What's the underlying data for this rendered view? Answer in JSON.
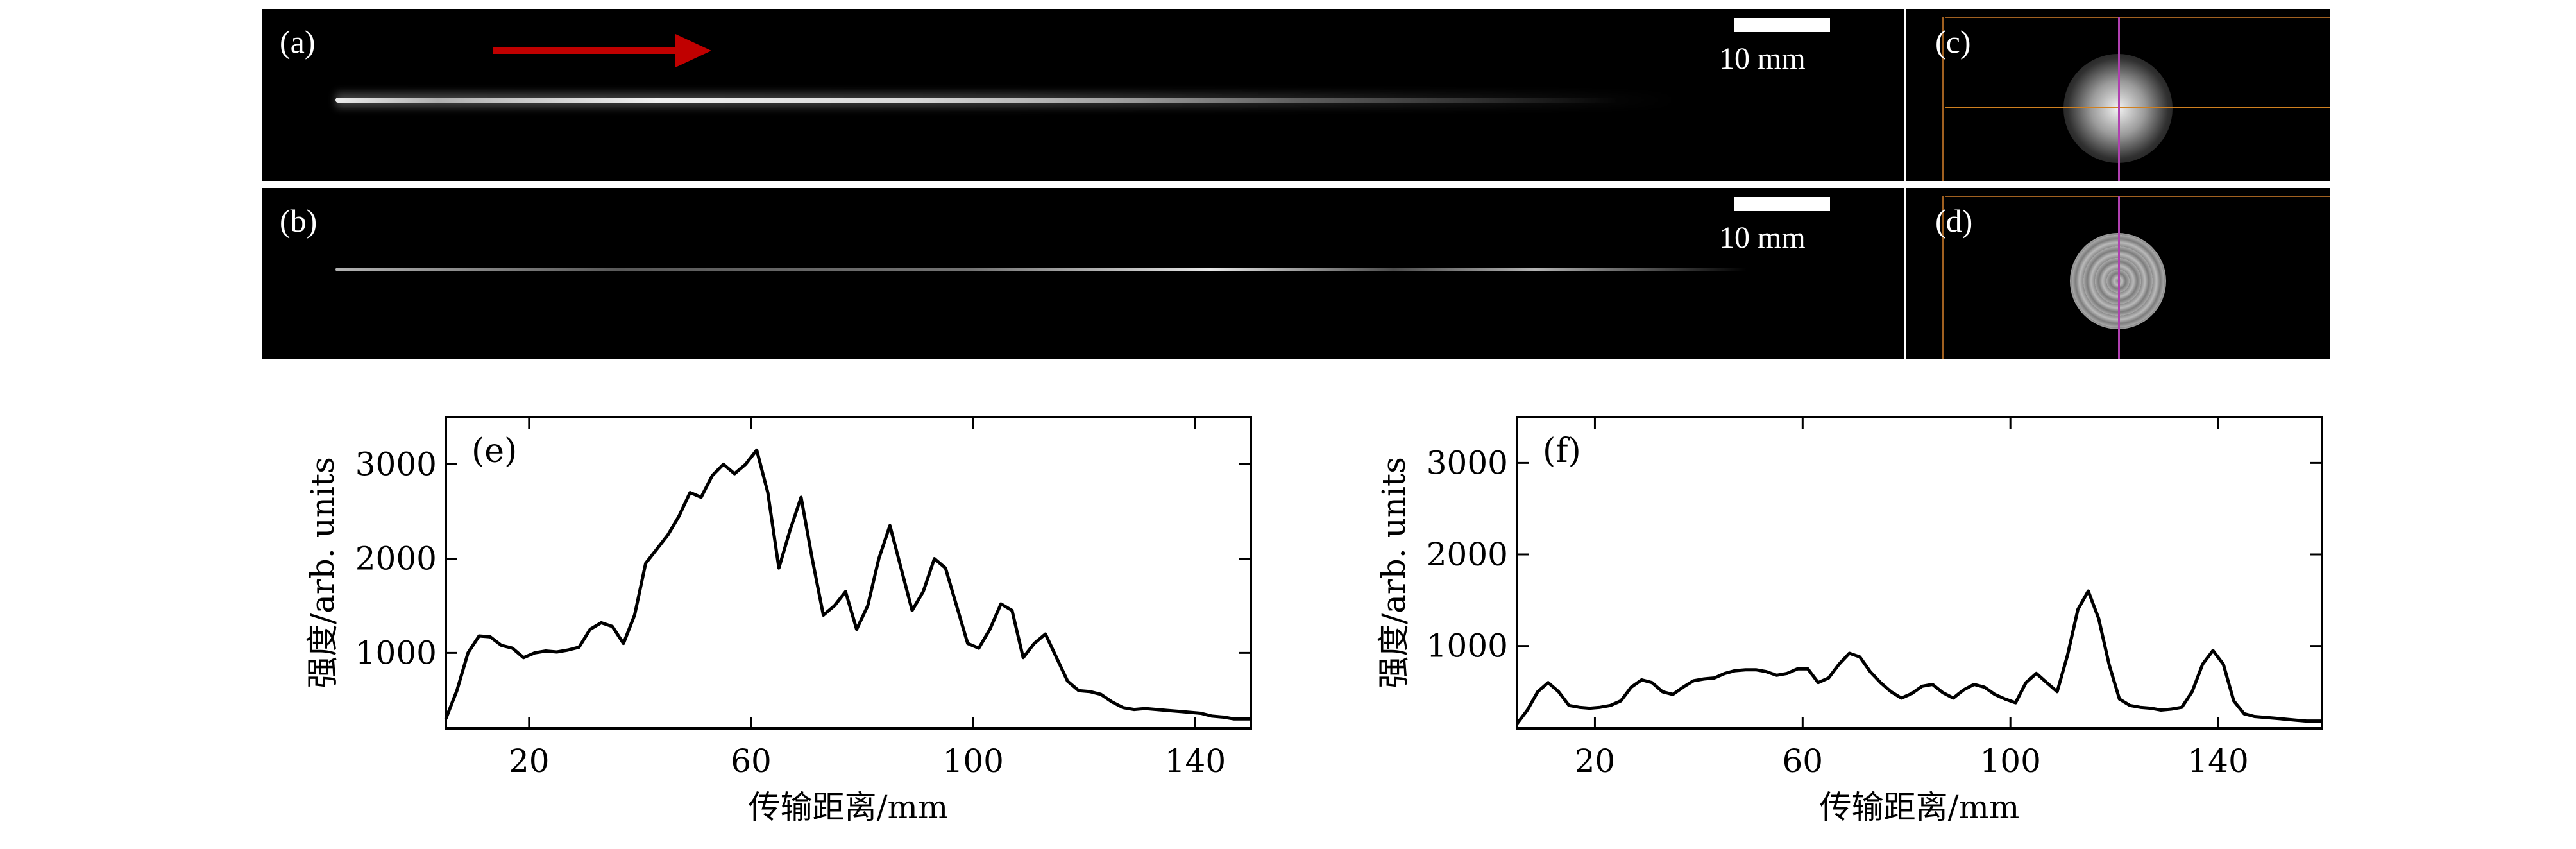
{
  "panels": {
    "a": {
      "label": "(a)",
      "scale": "10 mm"
    },
    "b": {
      "label": "(b)",
      "scale": "10 mm"
    },
    "c": {
      "label": "(c)"
    },
    "d": {
      "label": "(d)"
    }
  },
  "colors": {
    "arrow": "#c00000",
    "beam": "#ffffff",
    "crosshair_h": "#d08020",
    "crosshair_v": "#b040b0",
    "line": "#000000"
  },
  "chart_data": [
    {
      "type": "line",
      "panel_label": "(e)",
      "xlabel": "传输距离/mm",
      "ylabel": "强度/arb. units",
      "xlim": [
        5,
        150
      ],
      "ylim": [
        200,
        3500
      ],
      "xticks": [
        20,
        60,
        100,
        140
      ],
      "yticks": [
        1000,
        2000,
        3000
      ],
      "series": [
        {
          "x": [
            5,
            7,
            9,
            11,
            13,
            15,
            17,
            19,
            21,
            23,
            25,
            27,
            29,
            31,
            33,
            35,
            37,
            39,
            41,
            43,
            45,
            47,
            49,
            51,
            53,
            55,
            57,
            59,
            61,
            63,
            65,
            67,
            69,
            71,
            73,
            75,
            77,
            79,
            81,
            83,
            85,
            87,
            89,
            91,
            93,
            95,
            97,
            99,
            101,
            103,
            105,
            107,
            109,
            111,
            113,
            115,
            117,
            119,
            121,
            123,
            125,
            127,
            129,
            131,
            133,
            135,
            137,
            139,
            141,
            143,
            145,
            147,
            150
          ],
          "y": [
            300,
            600,
            1000,
            1180,
            1170,
            1080,
            1050,
            950,
            1000,
            1020,
            1010,
            1030,
            1060,
            1250,
            1320,
            1280,
            1100,
            1400,
            1950,
            2100,
            2250,
            2450,
            2700,
            2650,
            2880,
            3000,
            2900,
            3000,
            3150,
            2700,
            1900,
            2300,
            2650,
            2000,
            1400,
            1500,
            1650,
            1250,
            1500,
            2000,
            2350,
            1900,
            1450,
            1650,
            2000,
            1900,
            1500,
            1100,
            1050,
            1250,
            1520,
            1450,
            950,
            1100,
            1200,
            950,
            700,
            600,
            590,
            560,
            480,
            420,
            400,
            410,
            400,
            390,
            380,
            370,
            360,
            330,
            320,
            300,
            300
          ]
        }
      ]
    },
    {
      "type": "line",
      "panel_label": "(f)",
      "xlabel": "传输距离/mm",
      "ylabel": "强度/arb. units",
      "xlim": [
        5,
        160
      ],
      "ylim": [
        100,
        3500
      ],
      "xticks": [
        20,
        60,
        100,
        140
      ],
      "yticks": [
        1000,
        2000,
        3000
      ],
      "series": [
        {
          "x": [
            5,
            7,
            9,
            11,
            13,
            15,
            17,
            19,
            21,
            23,
            25,
            27,
            29,
            31,
            33,
            35,
            37,
            39,
            41,
            43,
            45,
            47,
            49,
            51,
            53,
            55,
            57,
            59,
            61,
            63,
            65,
            67,
            69,
            71,
            73,
            75,
            77,
            79,
            81,
            83,
            85,
            87,
            89,
            91,
            93,
            95,
            97,
            99,
            101,
            103,
            105,
            107,
            109,
            111,
            113,
            115,
            117,
            119,
            121,
            123,
            125,
            127,
            129,
            131,
            133,
            135,
            137,
            139,
            141,
            143,
            145,
            147,
            149,
            151,
            153,
            155,
            157,
            160
          ],
          "y": [
            150,
            300,
            500,
            600,
            500,
            350,
            330,
            320,
            330,
            350,
            400,
            550,
            630,
            600,
            500,
            470,
            550,
            620,
            640,
            650,
            700,
            730,
            740,
            740,
            720,
            680,
            700,
            750,
            750,
            600,
            650,
            800,
            920,
            880,
            720,
            600,
            500,
            430,
            480,
            560,
            580,
            490,
            430,
            520,
            580,
            550,
            470,
            420,
            380,
            600,
            700,
            600,
            500,
            900,
            1400,
            1600,
            1300,
            800,
            420,
            350,
            330,
            320,
            300,
            310,
            330,
            500,
            800,
            950,
            800,
            400,
            260,
            230,
            220,
            210,
            200,
            190,
            180,
            180
          ]
        }
      ]
    }
  ]
}
